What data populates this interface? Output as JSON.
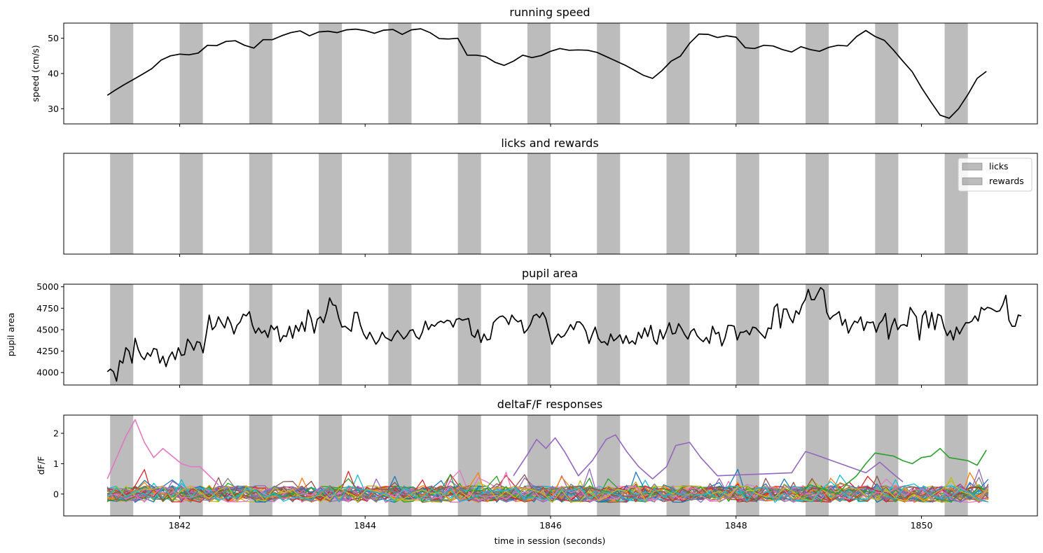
{
  "chart_data": [
    {
      "type": "line",
      "title": "running speed",
      "xlabel": "",
      "ylabel": "speed (cm/s)",
      "xlim": [
        1840.75,
        1851.25
      ],
      "ylim": [
        25.7,
        54.3
      ],
      "yticks": [
        30,
        40,
        50
      ],
      "xticks": [
        1842,
        1844,
        1846,
        1848,
        1850
      ],
      "show_xtick_labels": false,
      "grid": false,
      "series": [
        {
          "color": "#000000",
          "x": [
            1841.22,
            1841.3,
            1841.4,
            1841.5,
            1841.6,
            1841.7,
            1841.8,
            1841.9,
            1842.0,
            1842.1,
            1842.2,
            1842.3,
            1842.4,
            1842.5,
            1842.6,
            1842.7,
            1842.8,
            1842.9,
            1843.0,
            1843.1,
            1843.2,
            1843.3,
            1843.4,
            1843.5,
            1843.6,
            1843.7,
            1843.8,
            1843.9,
            1844.0,
            1844.1,
            1844.2,
            1844.3,
            1844.4,
            1844.5,
            1844.6,
            1844.7,
            1844.8,
            1844.9,
            1845.0,
            1845.1,
            1845.2,
            1845.3,
            1845.4,
            1845.5,
            1845.6,
            1845.7,
            1845.8,
            1845.9,
            1846.0,
            1846.1,
            1846.2,
            1846.3,
            1846.4,
            1846.5,
            1846.6,
            1846.7,
            1846.8,
            1846.9,
            1847.0,
            1847.1,
            1847.2,
            1847.3,
            1847.4,
            1847.5,
            1847.6,
            1847.7,
            1847.8,
            1847.9,
            1848.0,
            1848.1,
            1848.2,
            1848.3,
            1848.4,
            1848.5,
            1848.6,
            1848.7,
            1848.8,
            1848.9,
            1849.0,
            1849.1,
            1849.2,
            1849.3,
            1849.4,
            1849.5,
            1849.6,
            1849.7,
            1849.8,
            1849.9,
            1850.0,
            1850.1,
            1850.2,
            1850.3,
            1850.4,
            1850.5,
            1850.6,
            1850.7
          ],
          "y": [
            33.8,
            35.2,
            36.8,
            38.3,
            39.8,
            41.4,
            43.8,
            45.0,
            45.5,
            45.3,
            45.8,
            48.0,
            47.9,
            49.1,
            49.3,
            48.0,
            47.2,
            49.6,
            49.6,
            50.7,
            51.6,
            52.1,
            50.7,
            51.8,
            52.0,
            51.6,
            52.4,
            52.6,
            52.2,
            51.4,
            52.3,
            52.5,
            51.1,
            52.4,
            52.7,
            51.6,
            49.9,
            49.8,
            50.0,
            45.2,
            45.2,
            44.8,
            43.2,
            42.3,
            43.5,
            45.2,
            44.5,
            45.1,
            46.3,
            47.1,
            46.6,
            46.7,
            46.6,
            46.0,
            44.8,
            43.6,
            42.4,
            41.0,
            39.5,
            38.6,
            40.8,
            43.5,
            44.9,
            48.6,
            51.2,
            51.1,
            50.2,
            50.7,
            50.3,
            47.3,
            47.1,
            48.0,
            47.8,
            46.8,
            46.1,
            47.6,
            46.8,
            46.3,
            47.4,
            48.0,
            47.8,
            50.5,
            52.2,
            50.5,
            49.4,
            46.6,
            43.5,
            40.5,
            36.0,
            32.0,
            28.2,
            27.3,
            30.0,
            34.0,
            38.6,
            40.6
          ]
        }
      ]
    },
    {
      "type": "line",
      "title": "licks and rewards",
      "xlabel": "",
      "ylabel": "",
      "xlim": [
        1840.75,
        1851.25
      ],
      "yticks": [],
      "xticks": [
        1842,
        1844,
        1846,
        1848,
        1850
      ],
      "show_xtick_labels": false,
      "legend": {
        "placement": "top-right",
        "entries": [
          "licks",
          "rewards"
        ]
      },
      "series": []
    },
    {
      "type": "line",
      "title": "pupil area",
      "xlabel": "",
      "ylabel": "pupil area",
      "xlim": [
        1840.75,
        1851.25
      ],
      "ylim": [
        3855,
        5030
      ],
      "yticks": [
        4000,
        4250,
        4500,
        4750,
        5000
      ],
      "xticks": [
        1842,
        1844,
        1846,
        1848,
        1850
      ],
      "show_xtick_labels": false,
      "series": [
        {
          "color": "#000000",
          "x_start": 1841.22,
          "x_step": 0.0333,
          "y": [
            4010,
            4040,
            4010,
            3900,
            4140,
            4110,
            4290,
            4250,
            4110,
            4400,
            4270,
            4190,
            4150,
            4230,
            4190,
            4280,
            4270,
            4110,
            4190,
            4070,
            4180,
            4240,
            4150,
            4290,
            4200,
            4210,
            4390,
            4340,
            4260,
            4360,
            4350,
            4230,
            4440,
            4670,
            4500,
            4540,
            4650,
            4580,
            4520,
            4650,
            4570,
            4450,
            4550,
            4590,
            4680,
            4660,
            4710,
            4550,
            4460,
            4520,
            4460,
            4490,
            4410,
            4550,
            4500,
            4540,
            4360,
            4430,
            4420,
            4540,
            4400,
            4550,
            4480,
            4590,
            4480,
            4730,
            4630,
            4460,
            4620,
            4650,
            4580,
            4700,
            4870,
            4790,
            4780,
            4630,
            4530,
            4540,
            4510,
            4480,
            4700,
            4700,
            4550,
            4450,
            4390,
            4470,
            4400,
            4330,
            4380,
            4470,
            4410,
            4390,
            4370,
            4440,
            4490,
            4440,
            4390,
            4430,
            4490,
            4500,
            4420,
            4390,
            4470,
            4600,
            4500,
            4560,
            4540,
            4580,
            4600,
            4580,
            4610,
            4600,
            4530,
            4620,
            4630,
            4610,
            4620,
            4630,
            4440,
            4410,
            4500,
            4350,
            4450,
            4380,
            4390,
            4580,
            4620,
            4650,
            4660,
            4630,
            4560,
            4670,
            4620,
            4590,
            4610,
            4460,
            4500,
            4560,
            4660,
            4680,
            4640,
            4700,
            4630,
            4480,
            4330,
            4400,
            4450,
            4410,
            4430,
            4490,
            4560,
            4500,
            4590,
            4590,
            4550,
            4480,
            4340,
            4440,
            4530,
            4400,
            4350,
            4360,
            4320,
            4450,
            4370,
            4400,
            4440,
            4340,
            4430,
            4340,
            4370,
            4330,
            4470,
            4400,
            4520,
            4420,
            4550,
            4380,
            4330,
            4500,
            4390,
            4480,
            4580,
            4450,
            4460,
            4570,
            4510,
            4440,
            4390,
            4480,
            4510,
            4430,
            4390,
            4360,
            4410,
            4340,
            4540,
            4450,
            4470,
            4310,
            4400,
            4550,
            4550,
            4540,
            4380,
            4470,
            4470,
            4490,
            4440,
            4530,
            4520,
            4480,
            4440,
            4400,
            4520,
            4510,
            4760,
            4800,
            4520,
            4740,
            4740,
            4640,
            4580,
            4720,
            4680,
            4790,
            4850,
            4970,
            4850,
            4850,
            4920,
            4990,
            4960,
            4700,
            4620,
            4660,
            4680,
            4710,
            4550,
            4620,
            4460,
            4540,
            4600,
            4580,
            4650,
            4490,
            4590,
            4580,
            4590,
            4470,
            4570,
            4610,
            4690,
            4390,
            4540,
            4630,
            4500,
            4550,
            4560,
            4540,
            4760,
            4700,
            4650,
            4380,
            4660,
            4720,
            4520,
            4700,
            4500,
            4680,
            4660,
            4520,
            4430,
            4490,
            4380,
            4530,
            4450,
            4520,
            4580,
            4580,
            4600,
            4660,
            4600,
            4760,
            4730,
            4760,
            4750,
            4730,
            4710,
            4720,
            4790,
            4900,
            4610,
            4540,
            4540,
            4670,
            4660
          ]
        }
      ]
    },
    {
      "type": "line",
      "title": "deltaF/F responses",
      "xlabel": "time in session (seconds)",
      "ylabel": "dF/F",
      "xlim": [
        1840.75,
        1851.25
      ],
      "ylim": [
        -0.72,
        2.6
      ],
      "yticks": [
        0,
        1,
        2
      ],
      "xticks": [
        1842,
        1844,
        1846,
        1848,
        1850
      ],
      "xtick_labels": [
        "1842",
        "1844",
        "1846",
        "1848",
        "1850"
      ],
      "show_xtick_labels": true,
      "n_traces": 40,
      "series": [
        {
          "color": "#e377c2",
          "x": [
            1841.22,
            1841.32,
            1841.42,
            1841.52,
            1841.62,
            1841.72,
            1841.82,
            1841.92,
            1842.02,
            1842.12,
            1842.22,
            1842.32,
            1842.42
          ],
          "y": [
            0.5,
            1.2,
            1.9,
            2.45,
            1.7,
            1.2,
            1.5,
            1.25,
            1.0,
            0.9,
            0.9,
            0.6,
            0.3
          ]
        },
        {
          "color": "#9467bd",
          "x": [
            1845.6,
            1845.75,
            1845.85,
            1845.95,
            1846.05,
            1846.15,
            1846.3,
            1846.45,
            1846.6,
            1846.7,
            1846.82,
            1846.95,
            1847.1,
            1847.25,
            1847.35,
            1847.5,
            1847.62,
            1847.8,
            1848.6,
            1848.75,
            1848.85,
            1849.4,
            1849.55,
            1849.68,
            1849.8
          ],
          "y": [
            0.6,
            1.3,
            1.8,
            1.5,
            1.85,
            1.4,
            0.6,
            1.1,
            1.8,
            1.95,
            1.4,
            0.9,
            0.5,
            0.9,
            1.6,
            1.7,
            1.2,
            0.6,
            0.7,
            1.4,
            1.3,
            0.7,
            1.05,
            0.7,
            0.4
          ]
        },
        {
          "color": "#2ca02c",
          "x": [
            1848.7,
            1848.8,
            1848.9,
            1849.0,
            1849.1,
            1849.2,
            1849.3,
            1849.4,
            1849.5,
            1849.6,
            1849.7,
            1849.8,
            1849.9,
            1850.0,
            1850.1,
            1850.2,
            1850.3,
            1850.4,
            1850.5,
            1850.6,
            1850.7
          ],
          "y": [
            0.1,
            0.3,
            0.2,
            0.1,
            0.0,
            0.35,
            0.6,
            1.0,
            1.35,
            1.3,
            1.25,
            1.1,
            1.0,
            1.2,
            1.25,
            1.5,
            1.2,
            1.15,
            1.1,
            0.95,
            1.45
          ]
        }
      ]
    }
  ]
}
